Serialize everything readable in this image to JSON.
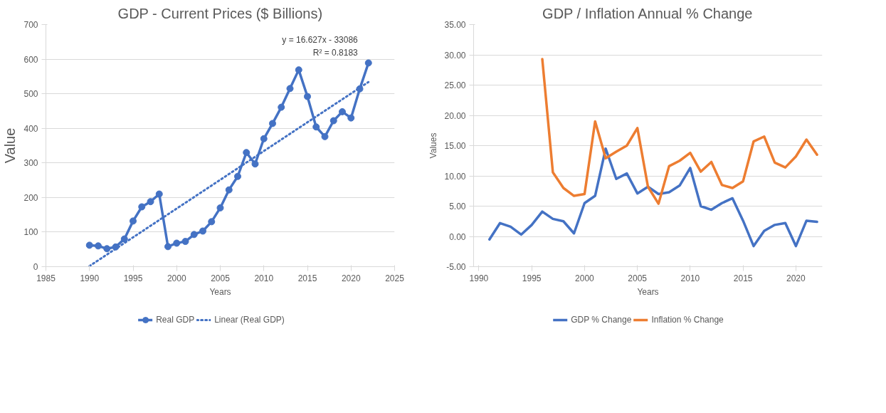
{
  "chart_data": [
    {
      "type": "line",
      "title": "GDP - Current Prices ($ Billions)",
      "xlabel": "Years",
      "ylabel": "Value",
      "x": [
        1990,
        1991,
        1992,
        1993,
        1994,
        1995,
        1996,
        1997,
        1998,
        1999,
        2000,
        2001,
        2002,
        2003,
        2004,
        2005,
        2006,
        2007,
        2008,
        2009,
        2010,
        2011,
        2012,
        2013,
        2014,
        2015,
        2016,
        2017,
        2018,
        2019,
        2020,
        2021,
        2022
      ],
      "series": [
        {
          "name": "Real GDP",
          "color": "#4472c4",
          "marker": "circle",
          "line_style": "solid",
          "values": [
            62,
            60,
            52,
            57,
            80,
            132,
            173,
            188,
            210,
            58,
            68,
            73,
            93,
            103,
            130,
            170,
            222,
            261,
            330,
            297,
            370,
            414,
            461,
            515,
            569,
            492,
            404,
            376,
            422,
            448,
            430,
            514,
            589
          ]
        },
        {
          "name": "Linear (Real GDP)",
          "type": "line",
          "color": "#4472c4",
          "marker": "none",
          "line_style": "dotted",
          "x": [
            1990,
            2022
          ],
          "values": [
            1.7,
            533.8
          ]
        }
      ],
      "annotations": [
        "y = 16.627x - 33086",
        "R² = 0.8183"
      ],
      "xlim": [
        1985,
        2025
      ],
      "xticks": [
        1985,
        1990,
        1995,
        2000,
        2005,
        2010,
        2015,
        2020,
        2025
      ],
      "ylim": [
        0,
        700
      ],
      "yticks": [
        0,
        100,
        200,
        300,
        400,
        500,
        600,
        700
      ],
      "grid": "y",
      "legend": "bottom"
    },
    {
      "type": "line",
      "title": "GDP / Inflation Annual % Change",
      "xlabel": "Years",
      "ylabel": "Values",
      "x": [
        1991,
        1992,
        1993,
        1994,
        1995,
        1996,
        1997,
        1998,
        1999,
        2000,
        2001,
        2002,
        2003,
        2004,
        2005,
        2006,
        2007,
        2008,
        2009,
        2010,
        2011,
        2012,
        2013,
        2014,
        2015,
        2016,
        2017,
        2018,
        2019,
        2020,
        2021,
        2022
      ],
      "series": [
        {
          "name": "GDP % Change",
          "color": "#4472c4",
          "values": [
            -0.5,
            2.2,
            1.6,
            0.3,
            1.9,
            4.1,
            2.9,
            2.5,
            0.5,
            5.5,
            6.7,
            14.5,
            9.5,
            10.4,
            7.1,
            8.2,
            7.0,
            7.3,
            8.4,
            11.3,
            5.0,
            4.4,
            5.5,
            6.3,
            2.6,
            -1.6,
            0.9,
            1.9,
            2.2,
            -1.6,
            2.6,
            2.4
          ]
        },
        {
          "name": "Inflation % Change",
          "color": "#ed7d31",
          "values": [
            null,
            null,
            null,
            null,
            null,
            29.3,
            10.6,
            8.0,
            6.7,
            7.0,
            19.0,
            12.9,
            14.0,
            15.0,
            17.9,
            8.2,
            5.4,
            11.6,
            12.5,
            13.8,
            10.7,
            12.3,
            8.5,
            8.0,
            9.1,
            15.7,
            16.5,
            12.2,
            11.4,
            13.2,
            16.0,
            13.5
          ]
        }
      ],
      "xlim": [
        1989.5,
        2022.5
      ],
      "xticks": [
        1990,
        1995,
        2000,
        2005,
        2010,
        2015,
        2020
      ],
      "ylim": [
        -5,
        35
      ],
      "yticks": [
        {
          "value": -5,
          "label": "-5.00"
        },
        {
          "value": 0,
          "label": "0.00"
        },
        {
          "value": 5,
          "label": "5.00"
        },
        {
          "value": 10,
          "label": "10.00"
        },
        {
          "value": 15,
          "label": "15.00"
        },
        {
          "value": 20,
          "label": "20.00"
        },
        {
          "value": 25,
          "label": "25.00"
        },
        {
          "value": 30,
          "label": "30.00"
        },
        {
          "value": 35,
          "label": "35.00"
        }
      ],
      "grid": "y",
      "legend": "bottom",
      "marker": "none",
      "line_style": "solid"
    }
  ]
}
